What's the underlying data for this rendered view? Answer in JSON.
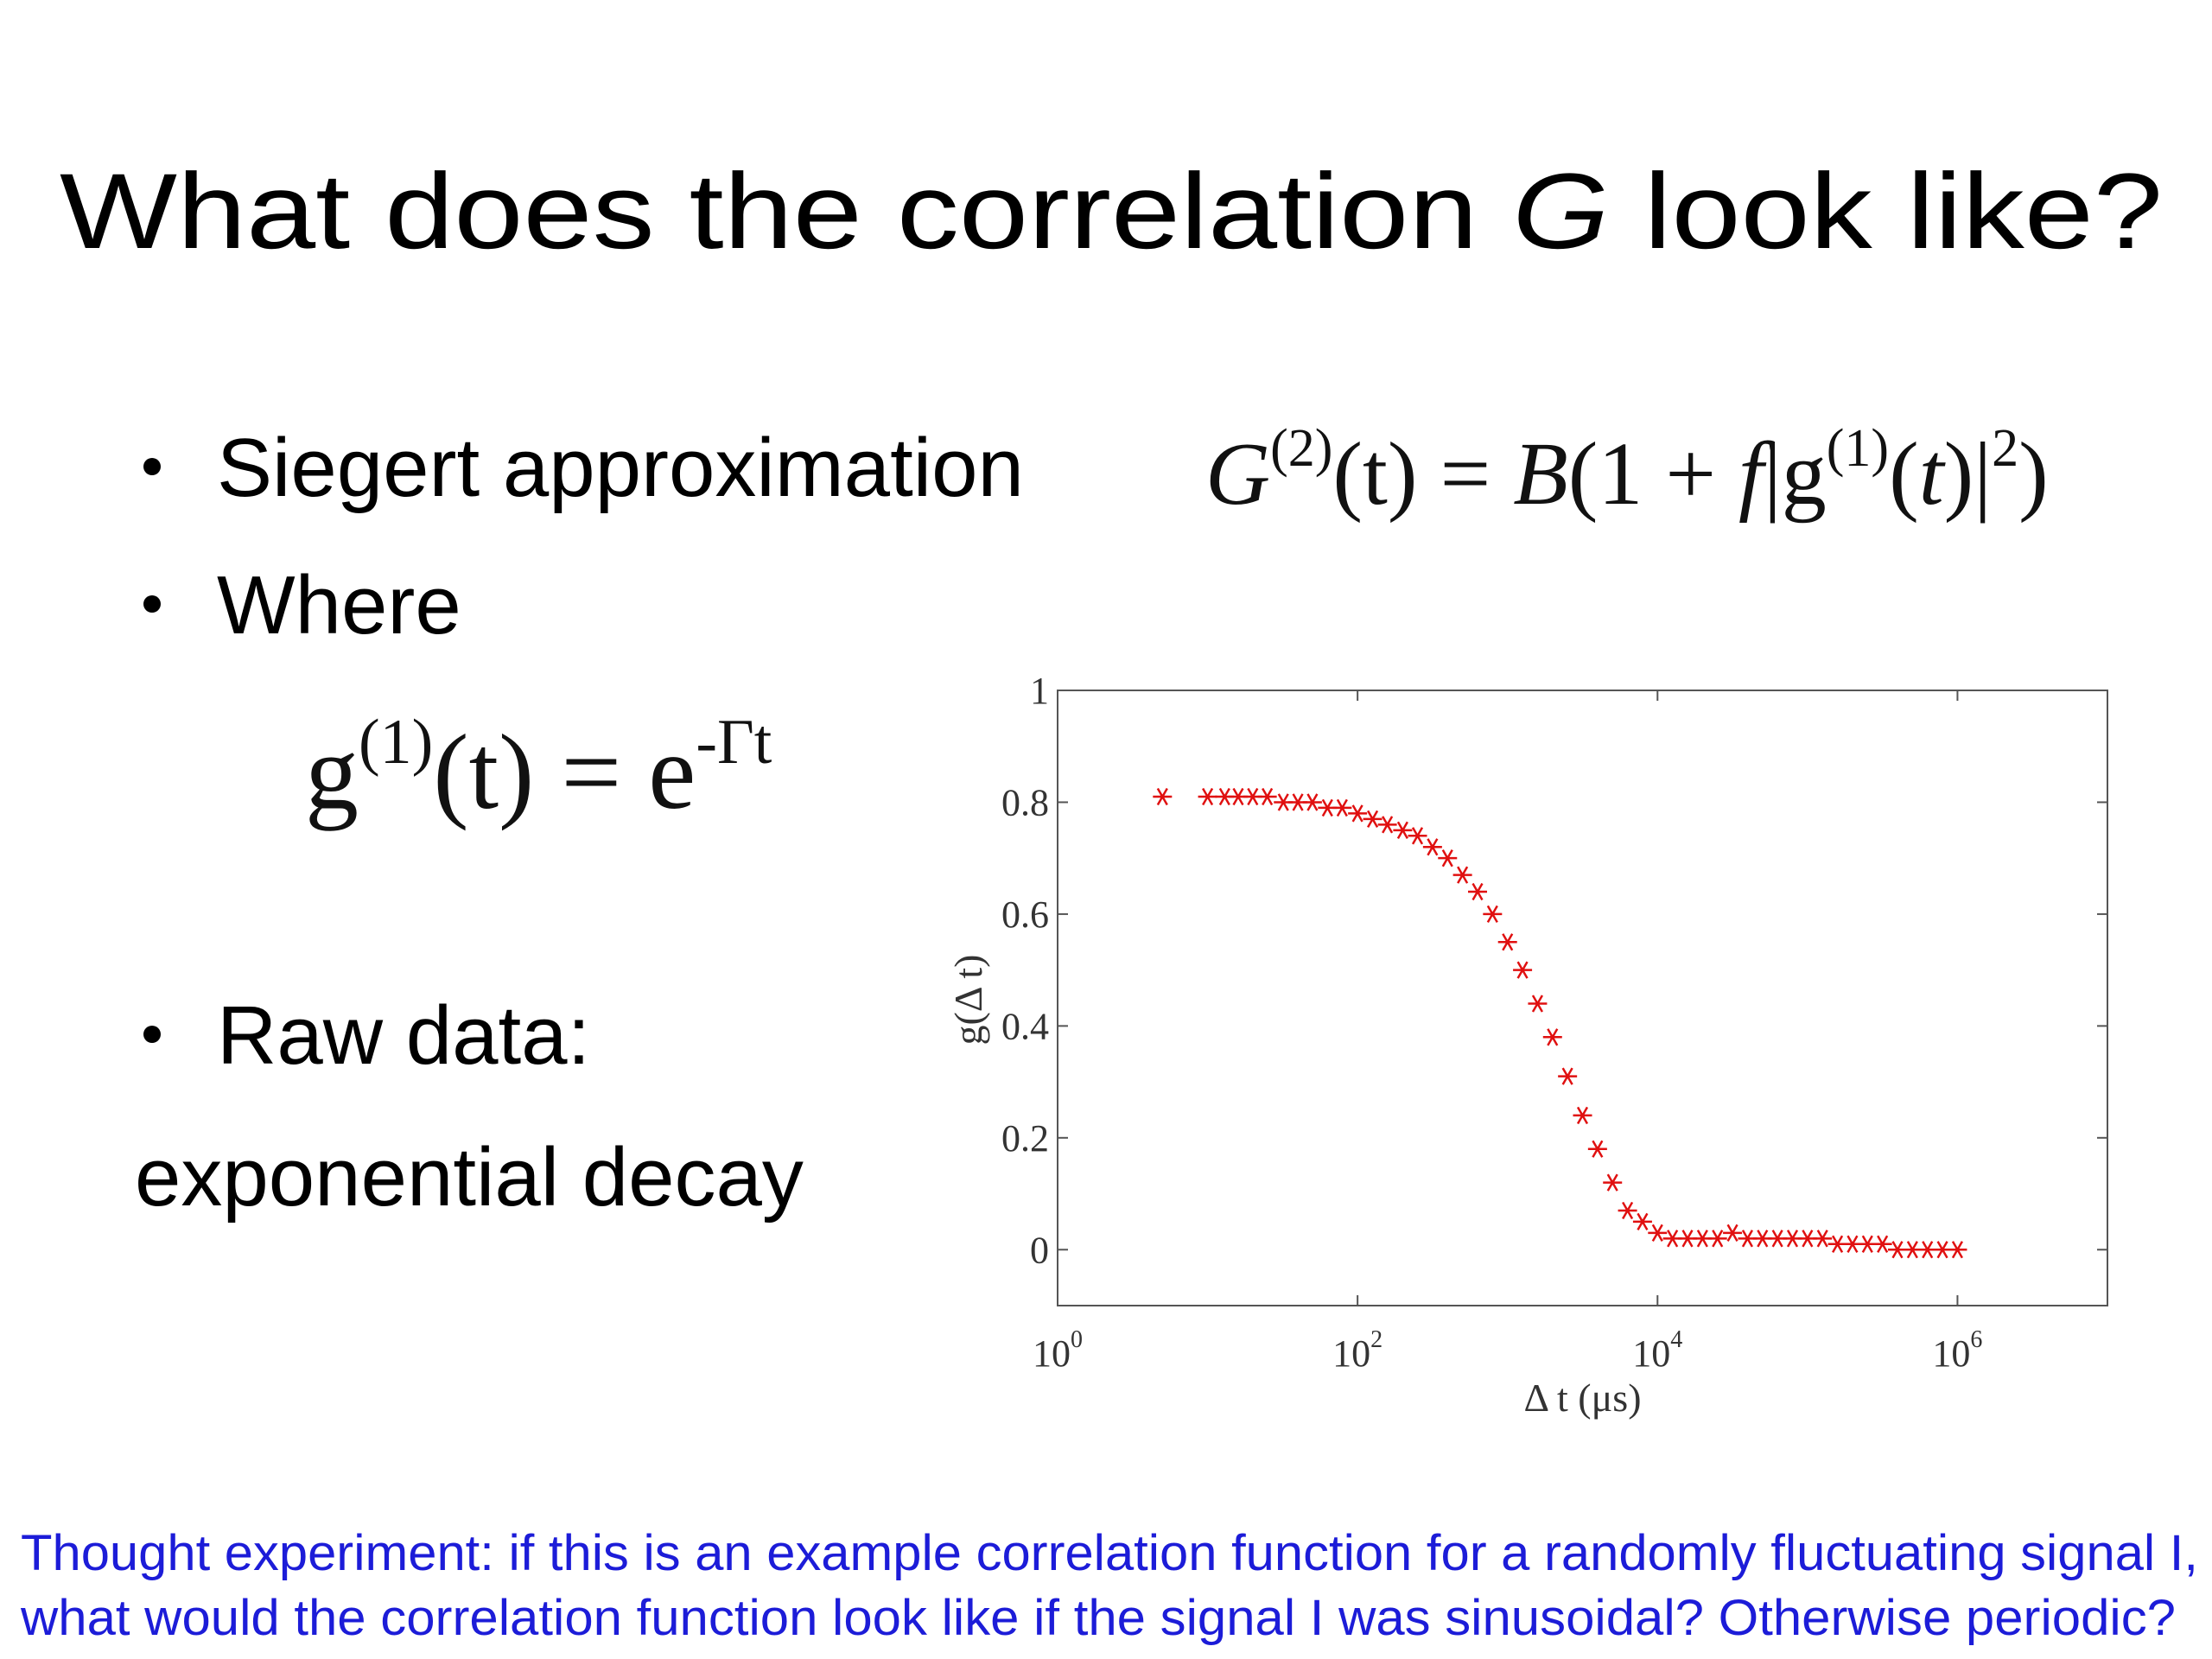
{
  "slide": {
    "title": [
      "What does the correlation ",
      "G",
      " look like?"
    ],
    "bullets": [
      "Siegert approximation",
      "Where",
      "Raw data:"
    ],
    "raw_data_note": "exponential decay",
    "equation_siegert": [
      "G",
      "(2)",
      "(t) = ",
      "B",
      "(1 + ",
      "f",
      "|g",
      "(1)",
      "(",
      "t",
      ")|",
      "2",
      ")"
    ],
    "equation_g1": [
      "g",
      "(1)",
      "(t) = e",
      "-Γt"
    ],
    "footer": [
      "Thought experiment: if this is an example correlation function for a randomly fluctuating signal I,",
      "what would the correlation function look like if the signal I was sinusoidal?  Otherwise periodic?"
    ]
  },
  "chart_data": {
    "type": "scatter",
    "xlabel": "Δ t (μs)",
    "ylabel": "g(Δ t)",
    "xscale": "log",
    "marker": "*",
    "color": "#e01010",
    "x": [
      5,
      10,
      13,
      16,
      20,
      25,
      32,
      40,
      50,
      63,
      79,
      100,
      126,
      158,
      200,
      251,
      316,
      398,
      501,
      631,
      794,
      1000,
      1259,
      1585,
      1995,
      2512,
      3162,
      3981,
      5012,
      6310,
      7943,
      10000,
      12589,
      15849,
      19953,
      25119,
      31623,
      39811,
      50119,
      63096,
      79433,
      100000,
      125893,
      158489,
      199526,
      251189,
      316228,
      398107,
      501187,
      630957,
      794328,
      1000000
    ],
    "values": [
      0.81,
      0.81,
      0.81,
      0.81,
      0.81,
      0.81,
      0.8,
      0.8,
      0.8,
      0.79,
      0.79,
      0.78,
      0.77,
      0.76,
      0.75,
      0.74,
      0.72,
      0.7,
      0.67,
      0.64,
      0.6,
      0.55,
      0.5,
      0.44,
      0.38,
      0.31,
      0.24,
      0.18,
      0.12,
      0.07,
      0.05,
      0.03,
      0.02,
      0.02,
      0.02,
      0.02,
      0.03,
      0.02,
      0.02,
      0.02,
      0.02,
      0.02,
      0.02,
      0.01,
      0.01,
      0.01,
      0.01,
      0.0,
      0.0,
      0.0,
      0.0,
      0.0
    ],
    "xlim": [
      1,
      10000000
    ],
    "xticks": [
      {
        "value": 1,
        "label": "10",
        "exponent": "0"
      },
      {
        "value": 100,
        "label": "10",
        "exponent": "2"
      },
      {
        "value": 10000,
        "label": "10",
        "exponent": "4"
      },
      {
        "value": 1000000,
        "label": "10",
        "exponent": "6"
      }
    ],
    "ylim": [
      -0.1,
      1
    ],
    "yticks": [
      0,
      0.2,
      0.4,
      0.6,
      0.8,
      1
    ]
  }
}
